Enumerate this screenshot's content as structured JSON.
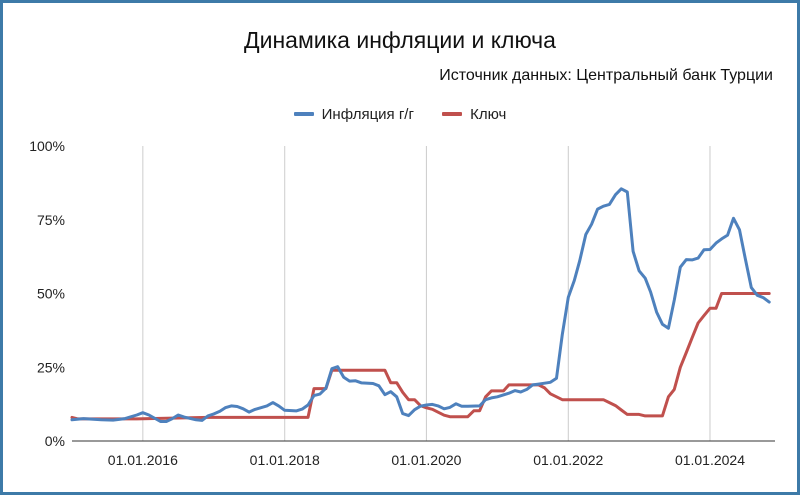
{
  "chart_data": {
    "type": "line",
    "title": "Динамика инфляции и ключа",
    "subtitle": "Источник данных: Центральный банк Турции",
    "ylim": [
      0,
      100
    ],
    "y_ticks": [
      {
        "value": 0,
        "label": "0%"
      },
      {
        "value": 25,
        "label": "25%"
      },
      {
        "value": 50,
        "label": "50%"
      },
      {
        "value": 75,
        "label": "75%"
      },
      {
        "value": 100,
        "label": "100%"
      }
    ],
    "xlim": [
      "2015-01-01",
      "2024-12-01"
    ],
    "x_ticks": [
      {
        "date": "2016-01-01",
        "label": "01.01.2016"
      },
      {
        "date": "2018-01-01",
        "label": "01.01.2018"
      },
      {
        "date": "2020-01-01",
        "label": "01.01.2020"
      },
      {
        "date": "2022-01-01",
        "label": "01.01.2022"
      },
      {
        "date": "2024-01-01",
        "label": "01.01.2024"
      }
    ],
    "grid": {
      "vertical": true,
      "horizontal": false
    },
    "legend_position": "top",
    "series": [
      {
        "name": "Инфляция г/г",
        "color": "#4e81bd",
        "points": [
          [
            "2015-01-01",
            7.2
          ],
          [
            "2015-03-01",
            7.6
          ],
          [
            "2015-06-01",
            7.2
          ],
          [
            "2015-08-01",
            7.1
          ],
          [
            "2015-10-01",
            7.6
          ],
          [
            "2015-12-01",
            8.8
          ],
          [
            "2016-01-01",
            9.6
          ],
          [
            "2016-02-01",
            8.8
          ],
          [
            "2016-04-01",
            6.6
          ],
          [
            "2016-05-01",
            6.6
          ],
          [
            "2016-06-01",
            7.6
          ],
          [
            "2016-07-01",
            8.8
          ],
          [
            "2016-08-01",
            8.1
          ],
          [
            "2016-10-01",
            7.2
          ],
          [
            "2016-11-01",
            7.0
          ],
          [
            "2016-12-01",
            8.5
          ],
          [
            "2017-01-01",
            9.2
          ],
          [
            "2017-02-01",
            10.1
          ],
          [
            "2017-03-01",
            11.3
          ],
          [
            "2017-04-01",
            11.9
          ],
          [
            "2017-05-01",
            11.7
          ],
          [
            "2017-06-01",
            10.9
          ],
          [
            "2017-07-01",
            9.8
          ],
          [
            "2017-08-01",
            10.7
          ],
          [
            "2017-10-01",
            11.9
          ],
          [
            "2017-11-01",
            13.0
          ],
          [
            "2017-12-01",
            11.9
          ],
          [
            "2018-01-01",
            10.4
          ],
          [
            "2018-03-01",
            10.2
          ],
          [
            "2018-04-01",
            10.8
          ],
          [
            "2018-05-01",
            12.2
          ],
          [
            "2018-06-01",
            15.4
          ],
          [
            "2018-07-01",
            15.9
          ],
          [
            "2018-08-01",
            17.9
          ],
          [
            "2018-09-01",
            24.5
          ],
          [
            "2018-10-01",
            25.2
          ],
          [
            "2018-11-01",
            21.6
          ],
          [
            "2018-12-01",
            20.3
          ],
          [
            "2019-01-01",
            20.4
          ],
          [
            "2019-02-01",
            19.7
          ],
          [
            "2019-04-01",
            19.5
          ],
          [
            "2019-05-01",
            18.7
          ],
          [
            "2019-06-01",
            15.7
          ],
          [
            "2019-07-01",
            16.7
          ],
          [
            "2019-08-01",
            15.0
          ],
          [
            "2019-09-01",
            9.3
          ],
          [
            "2019-10-01",
            8.6
          ],
          [
            "2019-11-01",
            10.6
          ],
          [
            "2019-12-01",
            11.8
          ],
          [
            "2020-01-01",
            12.2
          ],
          [
            "2020-02-01",
            12.4
          ],
          [
            "2020-03-01",
            11.9
          ],
          [
            "2020-04-01",
            10.9
          ],
          [
            "2020-05-01",
            11.4
          ],
          [
            "2020-06-01",
            12.6
          ],
          [
            "2020-07-01",
            11.8
          ],
          [
            "2020-08-01",
            11.8
          ],
          [
            "2020-10-01",
            11.9
          ],
          [
            "2020-11-01",
            14.0
          ],
          [
            "2020-12-01",
            14.6
          ],
          [
            "2021-01-01",
            15.0
          ],
          [
            "2021-03-01",
            16.2
          ],
          [
            "2021-04-01",
            17.1
          ],
          [
            "2021-05-01",
            16.6
          ],
          [
            "2021-06-01",
            17.5
          ],
          [
            "2021-07-01",
            19.0
          ],
          [
            "2021-08-01",
            19.3
          ],
          [
            "2021-09-01",
            19.6
          ],
          [
            "2021-10-01",
            19.9
          ],
          [
            "2021-11-01",
            21.3
          ],
          [
            "2021-12-01",
            36.1
          ],
          [
            "2022-01-01",
            48.7
          ],
          [
            "2022-02-01",
            54.4
          ],
          [
            "2022-03-01",
            61.1
          ],
          [
            "2022-04-01",
            70.0
          ],
          [
            "2022-05-01",
            73.5
          ],
          [
            "2022-06-01",
            78.6
          ],
          [
            "2022-07-01",
            79.6
          ],
          [
            "2022-08-01",
            80.2
          ],
          [
            "2022-09-01",
            83.5
          ],
          [
            "2022-10-01",
            85.5
          ],
          [
            "2022-11-01",
            84.4
          ],
          [
            "2022-12-01",
            64.3
          ],
          [
            "2023-01-01",
            57.7
          ],
          [
            "2023-02-01",
            55.2
          ],
          [
            "2023-03-01",
            50.5
          ],
          [
            "2023-04-01",
            43.7
          ],
          [
            "2023-05-01",
            39.6
          ],
          [
            "2023-06-01",
            38.2
          ],
          [
            "2023-07-01",
            47.8
          ],
          [
            "2023-08-01",
            58.9
          ],
          [
            "2023-09-01",
            61.5
          ],
          [
            "2023-10-01",
            61.4
          ],
          [
            "2023-11-01",
            62.0
          ],
          [
            "2023-12-01",
            64.8
          ],
          [
            "2024-01-01",
            64.9
          ],
          [
            "2024-02-01",
            67.1
          ],
          [
            "2024-03-01",
            68.5
          ],
          [
            "2024-04-01",
            69.8
          ],
          [
            "2024-05-01",
            75.5
          ],
          [
            "2024-06-01",
            71.6
          ],
          [
            "2024-07-01",
            61.8
          ],
          [
            "2024-08-01",
            52.0
          ],
          [
            "2024-09-01",
            49.4
          ],
          [
            "2024-10-01",
            48.6
          ],
          [
            "2024-11-01",
            47.1
          ]
        ]
      },
      {
        "name": "Ключ",
        "color": "#c0504d",
        "points": [
          [
            "2015-01-01",
            8.0
          ],
          [
            "2015-02-01",
            7.5
          ],
          [
            "2015-12-01",
            7.5
          ],
          [
            "2016-12-01",
            8.0
          ],
          [
            "2018-05-01",
            8.0
          ],
          [
            "2018-06-01",
            17.75
          ],
          [
            "2018-08-01",
            17.75
          ],
          [
            "2018-09-01",
            24.0
          ],
          [
            "2019-06-01",
            24.0
          ],
          [
            "2019-07-01",
            19.75
          ],
          [
            "2019-08-01",
            19.75
          ],
          [
            "2019-09-01",
            16.5
          ],
          [
            "2019-10-01",
            14.0
          ],
          [
            "2019-11-01",
            14.0
          ],
          [
            "2019-12-01",
            12.0
          ],
          [
            "2020-01-01",
            11.25
          ],
          [
            "2020-02-01",
            10.75
          ],
          [
            "2020-03-01",
            9.75
          ],
          [
            "2020-04-01",
            8.75
          ],
          [
            "2020-05-01",
            8.25
          ],
          [
            "2020-08-01",
            8.25
          ],
          [
            "2020-09-01",
            10.25
          ],
          [
            "2020-10-01",
            10.25
          ],
          [
            "2020-11-01",
            15.0
          ],
          [
            "2020-12-01",
            17.0
          ],
          [
            "2021-02-01",
            17.0
          ],
          [
            "2021-03-01",
            19.0
          ],
          [
            "2021-08-01",
            19.0
          ],
          [
            "2021-09-01",
            18.0
          ],
          [
            "2021-10-01",
            16.0
          ],
          [
            "2021-11-01",
            15.0
          ],
          [
            "2021-12-01",
            14.0
          ],
          [
            "2022-07-01",
            14.0
          ],
          [
            "2022-08-01",
            13.0
          ],
          [
            "2022-09-01",
            12.0
          ],
          [
            "2022-10-01",
            10.5
          ],
          [
            "2022-11-01",
            9.0
          ],
          [
            "2023-01-01",
            9.0
          ],
          [
            "2023-02-01",
            8.5
          ],
          [
            "2023-05-01",
            8.5
          ],
          [
            "2023-06-01",
            15.0
          ],
          [
            "2023-07-01",
            17.5
          ],
          [
            "2023-08-01",
            25.0
          ],
          [
            "2023-09-01",
            30.0
          ],
          [
            "2023-10-01",
            35.0
          ],
          [
            "2023-11-01",
            40.0
          ],
          [
            "2023-12-01",
            42.5
          ],
          [
            "2024-01-01",
            45.0
          ],
          [
            "2024-02-01",
            45.0
          ],
          [
            "2024-03-01",
            50.0
          ],
          [
            "2024-11-01",
            50.0
          ]
        ]
      }
    ]
  }
}
